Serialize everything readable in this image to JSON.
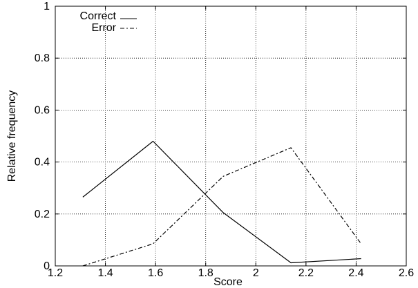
{
  "chart_data": {
    "type": "line",
    "title": "",
    "xlabel": "Score",
    "ylabel": "Relative frequency",
    "xlim": [
      1.2,
      2.6
    ],
    "ylim": [
      0,
      1
    ],
    "x_ticks": [
      1.2,
      1.4,
      1.6,
      1.8,
      2.0,
      2.2,
      2.4,
      2.6
    ],
    "x_tick_labels": [
      "1.2",
      "1.4",
      "1.6",
      "1.8",
      "2",
      "2.2",
      "2.4",
      "2.6"
    ],
    "y_ticks": [
      0,
      0.2,
      0.4,
      0.6,
      0.8,
      1.0
    ],
    "y_tick_labels": [
      "0",
      "0.2",
      "0.4",
      "0.6",
      "0.8",
      "1"
    ],
    "grid": true,
    "legend_position": "top-left",
    "series": [
      {
        "name": "Correct",
        "style": "solid",
        "color": "#000000",
        "points": [
          [
            1.31,
            0.265
          ],
          [
            1.59,
            0.48
          ],
          [
            1.87,
            0.205
          ],
          [
            2.14,
            0.012
          ],
          [
            2.42,
            0.028
          ]
        ]
      },
      {
        "name": "Error",
        "style": "dashdot",
        "color": "#000000",
        "points": [
          [
            1.31,
            0.0
          ],
          [
            1.59,
            0.085
          ],
          [
            1.87,
            0.345
          ],
          [
            2.14,
            0.455
          ],
          [
            2.42,
            0.085
          ]
        ]
      }
    ]
  }
}
